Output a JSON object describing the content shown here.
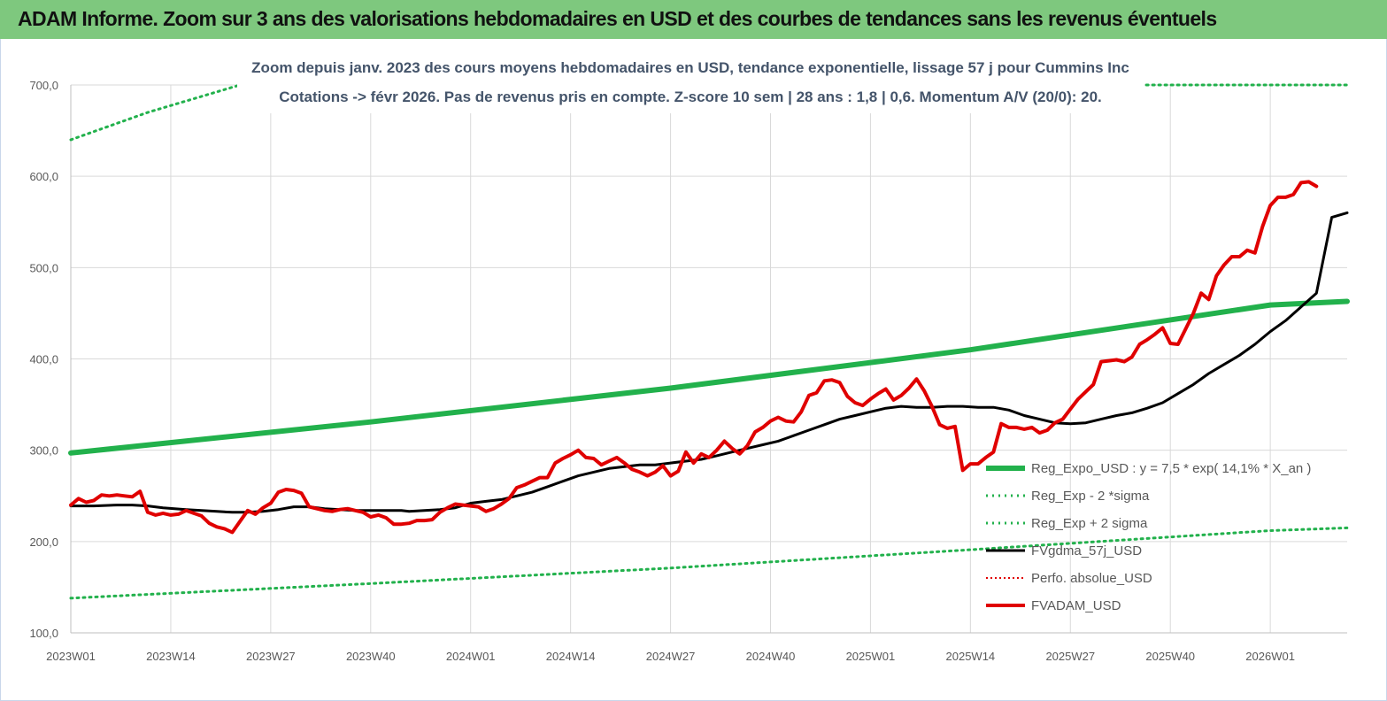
{
  "banner": {
    "title": "ADAM Informe. Zoom sur 3 ans des valorisations hebdomadaires en USD et des courbes de tendances sans les revenus éventuels"
  },
  "colors": {
    "banner_bg": "#7ec87e",
    "trend": "#22b14c",
    "sigma": "#22b14c",
    "smooth": "#000000",
    "perf": "#e00000",
    "price": "#e00000",
    "grid": "#d9d9d9",
    "title": "#44546a"
  },
  "chart_data": {
    "type": "line",
    "title_lines": [
      "Zoom depuis janv. 2023 des cours moyens hebdomadaires en USD, tendance exponentielle, lissage 57 j pour Cummins Inc",
      "Cotations -> févr 2026.  Pas de revenus pris en compte. Z-score 10 sem  | 28 ans : 1,8 | 0,6. Momentum A/V (20/0): 20."
    ],
    "ylim": [
      100,
      700
    ],
    "y_ticks": [
      "100,0",
      "200,0",
      "300,0",
      "400,0",
      "500,0",
      "600,0",
      "700,0"
    ],
    "x_tick_labels": [
      "2023W01",
      "2023W14",
      "2023W27",
      "2023W40",
      "2024W01",
      "2024W14",
      "2024W27",
      "2024W40",
      "2025W01",
      "2025W14",
      "2025W27",
      "2025W40",
      "2026W01"
    ],
    "x_tick_step_weeks": 13,
    "grid": true,
    "legend_position": "lower-right",
    "legend": [
      "Reg_Expo_USD : y = 7,5  * exp( 14,1% *  X_an )",
      "Reg_Exp - 2 *sigma",
      "Reg_Exp + 2 sigma",
      "FVgdma_57j_USD",
      "Perfo. absolue_USD",
      "FVADAM_USD"
    ],
    "series": [
      {
        "name": "Reg_Expo_USD : y = 7,5  * exp( 14,1% *  X_an )",
        "style": "solid-thick",
        "points": [
          [
            0,
            297
          ],
          [
            39,
            331
          ],
          [
            78,
            368
          ],
          [
            117,
            410
          ],
          [
            156,
            459
          ],
          [
            166,
            463
          ]
        ]
      },
      {
        "name": "Reg_Exp - 2 *sigma",
        "style": "dotted",
        "points": [
          [
            0,
            138
          ],
          [
            39,
            154
          ],
          [
            78,
            171
          ],
          [
            117,
            191
          ],
          [
            156,
            212
          ],
          [
            166,
            215
          ]
        ]
      },
      {
        "name": "Reg_Exp + 2 sigma",
        "style": "dotted",
        "points": [
          [
            0,
            640
          ],
          [
            10,
            670
          ],
          [
            22,
            700
          ],
          [
            166,
            700
          ]
        ]
      },
      {
        "name": "FVgdma_57j_USD",
        "style": "solid",
        "points": [
          [
            0,
            239
          ],
          [
            3,
            239
          ],
          [
            6,
            240
          ],
          [
            8,
            240
          ],
          [
            10,
            239
          ],
          [
            12,
            237
          ],
          [
            15,
            235
          ],
          [
            17,
            234
          ],
          [
            19,
            233
          ],
          [
            21,
            232
          ],
          [
            23,
            232
          ],
          [
            25,
            233
          ],
          [
            27,
            235
          ],
          [
            29,
            238
          ],
          [
            31,
            238
          ],
          [
            33,
            236
          ],
          [
            35,
            235
          ],
          [
            37,
            234
          ],
          [
            39,
            234
          ],
          [
            41,
            234
          ],
          [
            43,
            234
          ],
          [
            44,
            233
          ],
          [
            46,
            234
          ],
          [
            48,
            235
          ],
          [
            50,
            237
          ],
          [
            52,
            242
          ],
          [
            54,
            244
          ],
          [
            56,
            246
          ],
          [
            58,
            250
          ],
          [
            60,
            254
          ],
          [
            62,
            260
          ],
          [
            64,
            266
          ],
          [
            66,
            272
          ],
          [
            68,
            276
          ],
          [
            70,
            280
          ],
          [
            72,
            282
          ],
          [
            74,
            284
          ],
          [
            76,
            284
          ],
          [
            78,
            286
          ],
          [
            80,
            288
          ],
          [
            82,
            290
          ],
          [
            84,
            294
          ],
          [
            86,
            298
          ],
          [
            88,
            302
          ],
          [
            90,
            306
          ],
          [
            92,
            310
          ],
          [
            94,
            316
          ],
          [
            96,
            322
          ],
          [
            98,
            328
          ],
          [
            100,
            334
          ],
          [
            102,
            338
          ],
          [
            104,
            342
          ],
          [
            106,
            346
          ],
          [
            108,
            348
          ],
          [
            110,
            347
          ],
          [
            112,
            347
          ],
          [
            114,
            348
          ],
          [
            116,
            348
          ],
          [
            118,
            347
          ],
          [
            120,
            347
          ],
          [
            122,
            344
          ],
          [
            124,
            338
          ],
          [
            126,
            334
          ],
          [
            128,
            330
          ],
          [
            130,
            329
          ],
          [
            132,
            330
          ],
          [
            134,
            334
          ],
          [
            136,
            338
          ],
          [
            138,
            341
          ],
          [
            140,
            346
          ],
          [
            142,
            352
          ],
          [
            144,
            362
          ],
          [
            146,
            372
          ],
          [
            148,
            384
          ],
          [
            150,
            394
          ],
          [
            152,
            404
          ],
          [
            154,
            416
          ],
          [
            156,
            430
          ],
          [
            158,
            442
          ],
          [
            160,
            457
          ],
          [
            162,
            472
          ],
          [
            164,
            490
          ],
          [
            166,
            505
          ],
          [
            168,
            518
          ],
          [
            170,
            535
          ],
          [
            172,
            545
          ],
          [
            174,
            556
          ],
          [
            166.0001,
            505
          ]
        ]
      },
      {
        "name": "FVADAM_USD",
        "style": "solid-thick",
        "points": [
          [
            0,
            240
          ],
          [
            1,
            247
          ],
          [
            2,
            243
          ],
          [
            3,
            245
          ],
          [
            4,
            251
          ],
          [
            5,
            250
          ],
          [
            6,
            251
          ],
          [
            7,
            250
          ],
          [
            8,
            249
          ],
          [
            9,
            255
          ],
          [
            10,
            232
          ],
          [
            11,
            229
          ],
          [
            12,
            231
          ],
          [
            13,
            229
          ],
          [
            14,
            230
          ],
          [
            15,
            234
          ],
          [
            16,
            231
          ],
          [
            17,
            228
          ],
          [
            18,
            220
          ],
          [
            19,
            216
          ],
          [
            20,
            214
          ],
          [
            21,
            210
          ],
          [
            22,
            222
          ],
          [
            23,
            234
          ],
          [
            24,
            230
          ],
          [
            25,
            237
          ],
          [
            26,
            242
          ],
          [
            27,
            254
          ],
          [
            28,
            257
          ],
          [
            29,
            256
          ],
          [
            30,
            253
          ],
          [
            31,
            238
          ],
          [
            32,
            236
          ],
          [
            33,
            234
          ],
          [
            34,
            233
          ],
          [
            35,
            235
          ],
          [
            36,
            236
          ],
          [
            37,
            234
          ],
          [
            38,
            232
          ],
          [
            39,
            227
          ],
          [
            40,
            229
          ],
          [
            41,
            226
          ],
          [
            42,
            219
          ],
          [
            43,
            219
          ],
          [
            44,
            220
          ],
          [
            45,
            223
          ],
          [
            46,
            223
          ],
          [
            47,
            224
          ],
          [
            48,
            232
          ],
          [
            49,
            237
          ],
          [
            50,
            241
          ],
          [
            51,
            240
          ],
          [
            52,
            239
          ],
          [
            53,
            238
          ],
          [
            54,
            233
          ],
          [
            55,
            236
          ],
          [
            56,
            241
          ],
          [
            57,
            247
          ],
          [
            58,
            259
          ],
          [
            59,
            262
          ],
          [
            60,
            266
          ],
          [
            61,
            270
          ],
          [
            62,
            270
          ],
          [
            63,
            286
          ],
          [
            64,
            291
          ],
          [
            65,
            295
          ],
          [
            66,
            300
          ],
          [
            67,
            292
          ],
          [
            68,
            291
          ],
          [
            69,
            284
          ],
          [
            70,
            288
          ],
          [
            71,
            292
          ],
          [
            72,
            286
          ],
          [
            73,
            279
          ],
          [
            74,
            276
          ],
          [
            75,
            272
          ],
          [
            76,
            276
          ],
          [
            77,
            283
          ],
          [
            78,
            272
          ],
          [
            79,
            277
          ],
          [
            80,
            298
          ],
          [
            81,
            286
          ],
          [
            82,
            296
          ],
          [
            83,
            292
          ],
          [
            84,
            300
          ],
          [
            85,
            310
          ],
          [
            86,
            302
          ],
          [
            87,
            296
          ],
          [
            88,
            305
          ],
          [
            89,
            320
          ],
          [
            90,
            325
          ],
          [
            91,
            332
          ],
          [
            92,
            336
          ],
          [
            93,
            332
          ],
          [
            94,
            331
          ],
          [
            95,
            342
          ],
          [
            96,
            360
          ],
          [
            97,
            363
          ],
          [
            98,
            376
          ],
          [
            99,
            377
          ],
          [
            100,
            374
          ],
          [
            101,
            359
          ],
          [
            102,
            352
          ],
          [
            103,
            349
          ],
          [
            104,
            356
          ],
          [
            105,
            362
          ],
          [
            106,
            367
          ],
          [
            107,
            355
          ],
          [
            108,
            360
          ],
          [
            109,
            368
          ],
          [
            110,
            378
          ],
          [
            111,
            365
          ],
          [
            112,
            348
          ],
          [
            113,
            328
          ],
          [
            114,
            324
          ],
          [
            115,
            326
          ],
          [
            116,
            278
          ],
          [
            117,
            285
          ],
          [
            118,
            285
          ],
          [
            119,
            292
          ],
          [
            120,
            298
          ],
          [
            121,
            329
          ],
          [
            122,
            325
          ],
          [
            123,
            325
          ],
          [
            124,
            323
          ],
          [
            125,
            325
          ],
          [
            126,
            319
          ],
          [
            127,
            322
          ],
          [
            128,
            330
          ],
          [
            129,
            334
          ],
          [
            130,
            345
          ],
          [
            131,
            356
          ],
          [
            132,
            364
          ],
          [
            133,
            372
          ],
          [
            134,
            397
          ],
          [
            135,
            398
          ],
          [
            136,
            399
          ],
          [
            137,
            397
          ],
          [
            138,
            402
          ],
          [
            139,
            416
          ],
          [
            140,
            421
          ],
          [
            141,
            427
          ],
          [
            142,
            434
          ],
          [
            143,
            417
          ],
          [
            144,
            416
          ],
          [
            145,
            433
          ],
          [
            146,
            450
          ],
          [
            147,
            472
          ],
          [
            148,
            465
          ],
          [
            149,
            491
          ],
          [
            150,
            503
          ],
          [
            151,
            512
          ],
          [
            152,
            512
          ],
          [
            153,
            519
          ],
          [
            154,
            516
          ],
          [
            155,
            545
          ],
          [
            156,
            568
          ],
          [
            157,
            577
          ],
          [
            158,
            577
          ],
          [
            159,
            580
          ],
          [
            160,
            593
          ],
          [
            161,
            594
          ],
          [
            162,
            589
          ]
        ]
      }
    ]
  }
}
